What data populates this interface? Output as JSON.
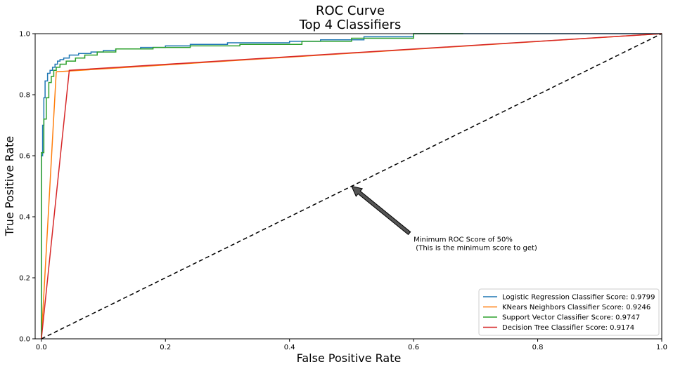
{
  "chart_data": {
    "type": "line",
    "title": "ROC Curve",
    "subtitle": "Top 4 Classifiers",
    "xlabel": "False Positive Rate",
    "ylabel": "True Positive Rate",
    "xlim": [
      -0.01,
      1.0
    ],
    "ylim": [
      0.0,
      1.0
    ],
    "xticks": [
      "0.0",
      "0.2",
      "0.4",
      "0.6",
      "0.8",
      "1.0"
    ],
    "yticks": [
      "0.0",
      "0.2",
      "0.4",
      "0.6",
      "0.8",
      "1.0"
    ],
    "grid": false,
    "legend_position": "bottom-right",
    "series": [
      {
        "name": "Logistic Regression Classifier Score: 0.9799",
        "color": "#1f77b4",
        "step": true,
        "x": [
          0,
          0,
          0.002,
          0.002,
          0.004,
          0.004,
          0.006,
          0.006,
          0.01,
          0.01,
          0.014,
          0.014,
          0.018,
          0.018,
          0.022,
          0.022,
          0.026,
          0.026,
          0.03,
          0.03,
          0.036,
          0.036,
          0.045,
          0.045,
          0.06,
          0.06,
          0.08,
          0.08,
          0.1,
          0.1,
          0.12,
          0.12,
          0.16,
          0.16,
          0.2,
          0.2,
          0.24,
          0.24,
          0.3,
          0.3,
          0.4,
          0.4,
          0.45,
          0.45,
          0.52,
          0.52,
          0.6,
          0.6,
          1.0
        ],
        "y": [
          0,
          0.6,
          0.6,
          0.7,
          0.7,
          0.79,
          0.79,
          0.845,
          0.845,
          0.87,
          0.87,
          0.88,
          0.88,
          0.89,
          0.89,
          0.9,
          0.9,
          0.91,
          0.91,
          0.915,
          0.915,
          0.92,
          0.92,
          0.93,
          0.93,
          0.935,
          0.935,
          0.94,
          0.94,
          0.945,
          0.945,
          0.95,
          0.95,
          0.955,
          0.955,
          0.96,
          0.96,
          0.965,
          0.965,
          0.97,
          0.97,
          0.975,
          0.975,
          0.98,
          0.98,
          0.99,
          0.99,
          1.0,
          1.0
        ]
      },
      {
        "name": "KNears Neighbors Classifier Score: 0.9246",
        "color": "#ff7f0e",
        "step": false,
        "x": [
          0,
          0.024,
          1.0
        ],
        "y": [
          0,
          0.875,
          1.0
        ]
      },
      {
        "name": "Support Vector Classifier Score: 0.9747",
        "color": "#2ca02c",
        "step": true,
        "x": [
          0,
          0,
          0.004,
          0.004,
          0.008,
          0.008,
          0.012,
          0.012,
          0.016,
          0.016,
          0.02,
          0.02,
          0.024,
          0.024,
          0.03,
          0.03,
          0.04,
          0.04,
          0.055,
          0.055,
          0.07,
          0.07,
          0.09,
          0.09,
          0.12,
          0.12,
          0.18,
          0.18,
          0.24,
          0.24,
          0.32,
          0.32,
          0.42,
          0.42,
          0.5,
          0.5,
          0.6,
          0.6,
          0.68
        ],
        "y": [
          0,
          0.61,
          0.61,
          0.72,
          0.72,
          0.79,
          0.79,
          0.84,
          0.84,
          0.86,
          0.86,
          0.88,
          0.88,
          0.89,
          0.89,
          0.9,
          0.9,
          0.91,
          0.91,
          0.92,
          0.92,
          0.93,
          0.93,
          0.94,
          0.94,
          0.95,
          0.95,
          0.955,
          0.955,
          0.96,
          0.96,
          0.965,
          0.965,
          0.975,
          0.975,
          0.985,
          0.985,
          1.0,
          1.0
        ]
      },
      {
        "name": "Decision Tree Classifier Score: 0.9174",
        "color": "#d62728",
        "step": false,
        "x": [
          0,
          0.045,
          1.0
        ],
        "y": [
          0,
          0.88,
          1.0
        ]
      }
    ],
    "reference_line": {
      "x": [
        0,
        1
      ],
      "y": [
        0,
        1
      ],
      "color": "#000000",
      "style": "dashed"
    },
    "annotation": {
      "text_line1": "Minimum ROC Score of 50%",
      "text_line2": " (This is the minimum score to get)",
      "text_x": 0.6,
      "text_y": 0.3,
      "arrow_tip_x": 0.5,
      "arrow_tip_y": 0.5,
      "arrow_color": "#555555"
    }
  }
}
